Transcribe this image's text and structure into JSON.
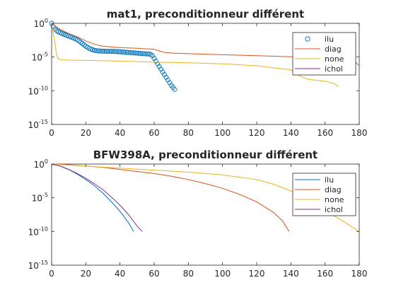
{
  "chart_data": [
    {
      "type": "line",
      "title": "mat1, preconditionneur différent",
      "xlabel": "",
      "ylabel": "",
      "xlim": [
        0,
        180
      ],
      "ylim": [
        1e-15,
        1
      ],
      "yscale": "log",
      "x_ticks": [
        "0",
        "20",
        "40",
        "60",
        "80",
        "100",
        "120",
        "140",
        "160",
        "180"
      ],
      "y_ticks": [
        {
          "base": "10",
          "exp": "0",
          "value": 1
        },
        {
          "base": "10",
          "exp": "-5",
          "value": 1e-05
        },
        {
          "base": "10",
          "exp": "-10",
          "value": 1e-10
        },
        {
          "base": "10",
          "exp": "-15",
          "value": 1e-15
        }
      ],
      "grid": false,
      "legend_position": "top-right",
      "series": [
        {
          "name": "ilu",
          "color": "#0072BD",
          "marker": "circle",
          "line": false,
          "points": [
            [
              0,
              0
            ],
            [
              1,
              -0.5
            ],
            [
              2,
              -0.85
            ],
            [
              3,
              -1.1
            ],
            [
              4,
              -1.25
            ],
            [
              5,
              -1.38
            ],
            [
              6,
              -1.5
            ],
            [
              7,
              -1.6
            ],
            [
              8,
              -1.7
            ],
            [
              9,
              -1.8
            ],
            [
              10,
              -1.9
            ],
            [
              11,
              -2.0
            ],
            [
              12,
              -2.1
            ],
            [
              13,
              -2.2
            ],
            [
              14,
              -2.3
            ],
            [
              15,
              -2.45
            ],
            [
              16,
              -2.6
            ],
            [
              17,
              -2.8
            ],
            [
              18,
              -3.0
            ],
            [
              19,
              -3.2
            ],
            [
              20,
              -3.4
            ],
            [
              21,
              -3.55
            ],
            [
              22,
              -3.7
            ],
            [
              23,
              -3.82
            ],
            [
              24,
              -3.92
            ],
            [
              25,
              -4.0
            ],
            [
              26,
              -4.05
            ],
            [
              27,
              -4.08
            ],
            [
              28,
              -4.1
            ],
            [
              29,
              -4.12
            ],
            [
              30,
              -4.13
            ],
            [
              31,
              -4.14
            ],
            [
              32,
              -4.15
            ],
            [
              33,
              -4.15
            ],
            [
              34,
              -4.16
            ],
            [
              35,
              -4.16
            ],
            [
              36,
              -4.17
            ],
            [
              37,
              -4.18
            ],
            [
              38,
              -4.19
            ],
            [
              39,
              -4.2
            ],
            [
              40,
              -4.22
            ],
            [
              41,
              -4.24
            ],
            [
              42,
              -4.26
            ],
            [
              43,
              -4.28
            ],
            [
              44,
              -4.3
            ],
            [
              45,
              -4.32
            ],
            [
              46,
              -4.34
            ],
            [
              47,
              -4.36
            ],
            [
              48,
              -4.38
            ],
            [
              49,
              -4.4
            ],
            [
              50,
              -4.42
            ],
            [
              51,
              -4.44
            ],
            [
              52,
              -4.46
            ],
            [
              53,
              -4.48
            ],
            [
              54,
              -4.5
            ],
            [
              55,
              -4.52
            ],
            [
              56,
              -4.54
            ],
            [
              57,
              -4.56
            ],
            [
              58,
              -4.6
            ],
            [
              59,
              -4.8
            ],
            [
              60,
              -5.2
            ],
            [
              61,
              -5.6
            ],
            [
              62,
              -6.0
            ],
            [
              63,
              -6.4
            ],
            [
              64,
              -6.8
            ],
            [
              65,
              -7.2
            ],
            [
              66,
              -7.6
            ],
            [
              67,
              -8.0
            ],
            [
              68,
              -8.4
            ],
            [
              69,
              -8.8
            ],
            [
              70,
              -9.2
            ],
            [
              71,
              -9.5
            ],
            [
              72,
              -9.8
            ]
          ]
        },
        {
          "name": "diag",
          "color": "#D95319",
          "marker": "none",
          "line": true,
          "points": [
            [
              0,
              0
            ],
            [
              5,
              -0.9
            ],
            [
              10,
              -1.5
            ],
            [
              15,
              -2.0
            ],
            [
              20,
              -2.6
            ],
            [
              25,
              -3.1
            ],
            [
              30,
              -3.4
            ],
            [
              40,
              -3.6
            ],
            [
              50,
              -3.7
            ],
            [
              60,
              -3.85
            ],
            [
              63,
              -4.1
            ],
            [
              66,
              -4.3
            ],
            [
              70,
              -4.4
            ],
            [
              80,
              -4.5
            ],
            [
              100,
              -4.65
            ],
            [
              120,
              -4.8
            ],
            [
              140,
              -4.95
            ],
            [
              150,
              -5.05
            ],
            [
              160,
              -5.1
            ],
            [
              170,
              -5.2
            ],
            [
              175,
              -5.35
            ],
            [
              178,
              -5.8
            ],
            [
              180,
              -6.3
            ]
          ]
        },
        {
          "name": "none",
          "color": "#EDB120",
          "marker": "none",
          "line": true,
          "points": [
            [
              0,
              0
            ],
            [
              1,
              -1.5
            ],
            [
              2,
              -3.0
            ],
            [
              3,
              -4.8
            ],
            [
              4,
              -5.3
            ],
            [
              6,
              -5.4
            ],
            [
              10,
              -5.45
            ],
            [
              20,
              -5.5
            ],
            [
              40,
              -5.6
            ],
            [
              60,
              -5.75
            ],
            [
              80,
              -5.85
            ],
            [
              100,
              -6.0
            ],
            [
              120,
              -6.3
            ],
            [
              140,
              -6.9
            ],
            [
              145,
              -7.8
            ],
            [
              150,
              -8.3
            ],
            [
              160,
              -8.6
            ],
            [
              165,
              -8.9
            ],
            [
              168,
              -9.4
            ]
          ]
        },
        {
          "name": "ichol",
          "color": "#7E2F8E",
          "marker": "none",
          "line": true,
          "points": []
        }
      ]
    },
    {
      "type": "line",
      "title": "BFW398A, preconditionneur différent",
      "xlabel": "",
      "ylabel": "",
      "xlim": [
        0,
        180
      ],
      "ylim": [
        1e-15,
        1
      ],
      "yscale": "log",
      "x_ticks": [
        "0",
        "20",
        "40",
        "60",
        "80",
        "100",
        "120",
        "140",
        "160",
        "180"
      ],
      "y_ticks": [
        {
          "base": "10",
          "exp": "0",
          "value": 1
        },
        {
          "base": "10",
          "exp": "-5",
          "value": 1e-05
        },
        {
          "base": "10",
          "exp": "-10",
          "value": 1e-10
        },
        {
          "base": "10",
          "exp": "-15",
          "value": 1e-15
        }
      ],
      "grid": false,
      "legend_position": "top-right",
      "series": [
        {
          "name": "ilu",
          "color": "#0072BD",
          "marker": "none",
          "line": true,
          "points": [
            [
              0,
              0
            ],
            [
              5,
              -0.3
            ],
            [
              10,
              -0.8
            ],
            [
              15,
              -1.5
            ],
            [
              20,
              -2.3
            ],
            [
              25,
              -3.2
            ],
            [
              30,
              -4.3
            ],
            [
              35,
              -5.6
            ],
            [
              40,
              -7.0
            ],
            [
              45,
              -8.7
            ],
            [
              48,
              -10.0
            ]
          ]
        },
        {
          "name": "diag",
          "color": "#D95319",
          "marker": "none",
          "line": true,
          "points": [
            [
              0,
              0
            ],
            [
              10,
              -0.1
            ],
            [
              20,
              -0.3
            ],
            [
              30,
              -0.5
            ],
            [
              40,
              -0.8
            ],
            [
              50,
              -1.1
            ],
            [
              60,
              -1.4
            ],
            [
              70,
              -1.8
            ],
            [
              80,
              -2.3
            ],
            [
              90,
              -2.9
            ],
            [
              100,
              -3.6
            ],
            [
              110,
              -4.5
            ],
            [
              120,
              -5.6
            ],
            [
              130,
              -7.2
            ],
            [
              135,
              -8.4
            ],
            [
              139,
              -10.0
            ]
          ]
        },
        {
          "name": "none",
          "color": "#EDB120",
          "marker": "none",
          "line": true,
          "points": [
            [
              0,
              0
            ],
            [
              20,
              -0.3
            ],
            [
              40,
              -0.6
            ],
            [
              60,
              -0.9
            ],
            [
              80,
              -1.2
            ],
            [
              100,
              -1.6
            ],
            [
              120,
              -2.3
            ],
            [
              130,
              -3.0
            ],
            [
              140,
              -4.0
            ],
            [
              150,
              -5.2
            ],
            [
              160,
              -6.9
            ],
            [
              170,
              -8.4
            ],
            [
              180,
              -10.0
            ]
          ]
        },
        {
          "name": "ichol",
          "color": "#7E2F8E",
          "marker": "none",
          "line": true,
          "points": [
            [
              0,
              0
            ],
            [
              5,
              -0.3
            ],
            [
              10,
              -0.8
            ],
            [
              15,
              -1.4
            ],
            [
              20,
              -2.1
            ],
            [
              25,
              -2.9
            ],
            [
              30,
              -3.8
            ],
            [
              35,
              -4.9
            ],
            [
              40,
              -6.1
            ],
            [
              45,
              -7.5
            ],
            [
              50,
              -9.2
            ],
            [
              53,
              -10.0
            ]
          ]
        }
      ]
    }
  ]
}
